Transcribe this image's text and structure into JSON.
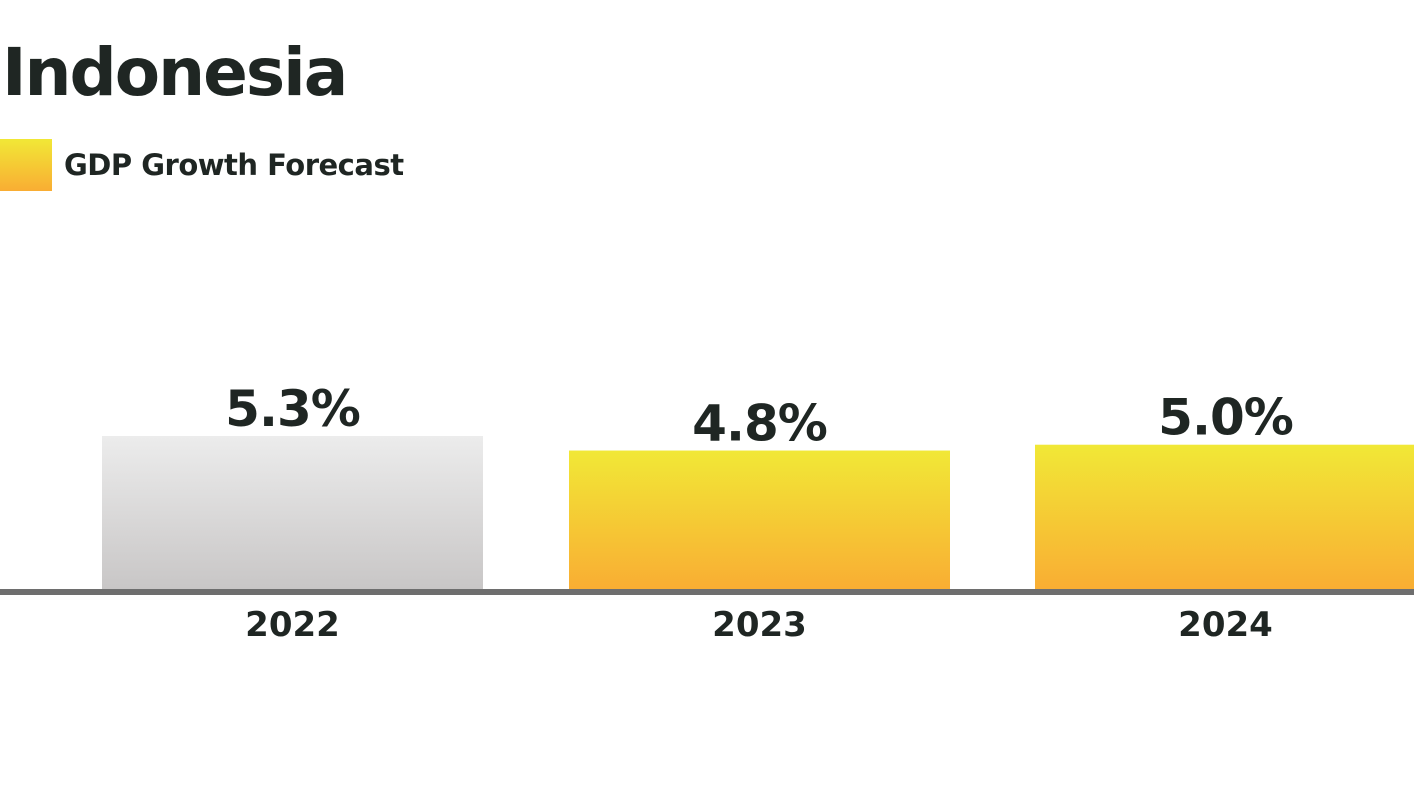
{
  "chart_data": {
    "type": "bar",
    "title": "Indonesia",
    "categories": [
      "2022",
      "2023",
      "2024"
    ],
    "series": [
      {
        "name": "GDP Growth Forecast",
        "values": [
          5.3,
          4.8,
          5.0
        ],
        "value_labels": [
          "5.3%",
          "4.8%",
          "5.0%"
        ]
      }
    ],
    "highlighted": [
      false,
      true,
      true
    ],
    "legend_position": "top-left",
    "grid": false,
    "ylim": [
      0,
      5.3
    ],
    "colors": {
      "forecast_top": "#f1e836",
      "forecast_bottom": "#f9ad33",
      "actual_top": "#ececec",
      "actual_bottom": "#c8c6c6",
      "axis": "#6e6e6e"
    }
  }
}
